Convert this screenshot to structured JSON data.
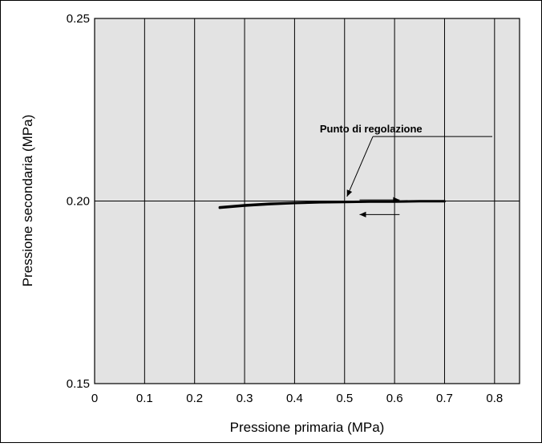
{
  "chart_data": {
    "type": "line",
    "title": "",
    "xlabel": "Pressione primaria (MPa)",
    "ylabel": "Pressione secondaria (MPa)",
    "xlim": [
      0,
      0.85
    ],
    "ylim": [
      0.15,
      0.25
    ],
    "x_ticks": [
      0,
      0.1,
      0.2,
      0.3,
      0.4,
      0.5,
      0.6,
      0.7,
      0.8
    ],
    "x_tick_labels": [
      "0",
      "0.1",
      "0.2",
      "0.3",
      "0.4",
      "0.5",
      "0.6",
      "0.7",
      "0.8"
    ],
    "y_ticks": [
      0.15,
      0.2,
      0.25
    ],
    "y_tick_labels": [
      "0.15",
      "0.20",
      "0.25"
    ],
    "grid": "vertical lines at each x tick, horizontal line at 0.20",
    "plot_background": "#e3e3e3",
    "series": [
      {
        "x": [
          0.25,
          0.3,
          0.35,
          0.4,
          0.45,
          0.5,
          0.55,
          0.6,
          0.65,
          0.7
        ],
        "y": [
          0.1981,
          0.1987,
          0.1991,
          0.1994,
          0.1996,
          0.1997,
          0.1998,
          0.1998,
          0.1999,
          0.1999
        ]
      },
      {
        "x": [
          0.7,
          0.65,
          0.6,
          0.55,
          0.5,
          0.45,
          0.4,
          0.35,
          0.3,
          0.25
        ],
        "y": [
          0.2,
          0.2,
          0.1999,
          0.1999,
          0.1998,
          0.1997,
          0.1995,
          0.1993,
          0.1989,
          0.1983
        ]
      }
    ],
    "annotations": [
      {
        "text": "Punto di regolazione",
        "label_at": [
          0.585,
          0.2181
        ],
        "points_to": [
          0.5,
          0.1999
        ]
      }
    ],
    "direction_arrows": [
      {
        "from": [
          0.53,
          0.2003
        ],
        "to": [
          0.61,
          0.2003
        ],
        "direction": "right"
      },
      {
        "from": [
          0.61,
          0.1963
        ],
        "to": [
          0.53,
          0.1963
        ],
        "direction": "left"
      }
    ]
  }
}
